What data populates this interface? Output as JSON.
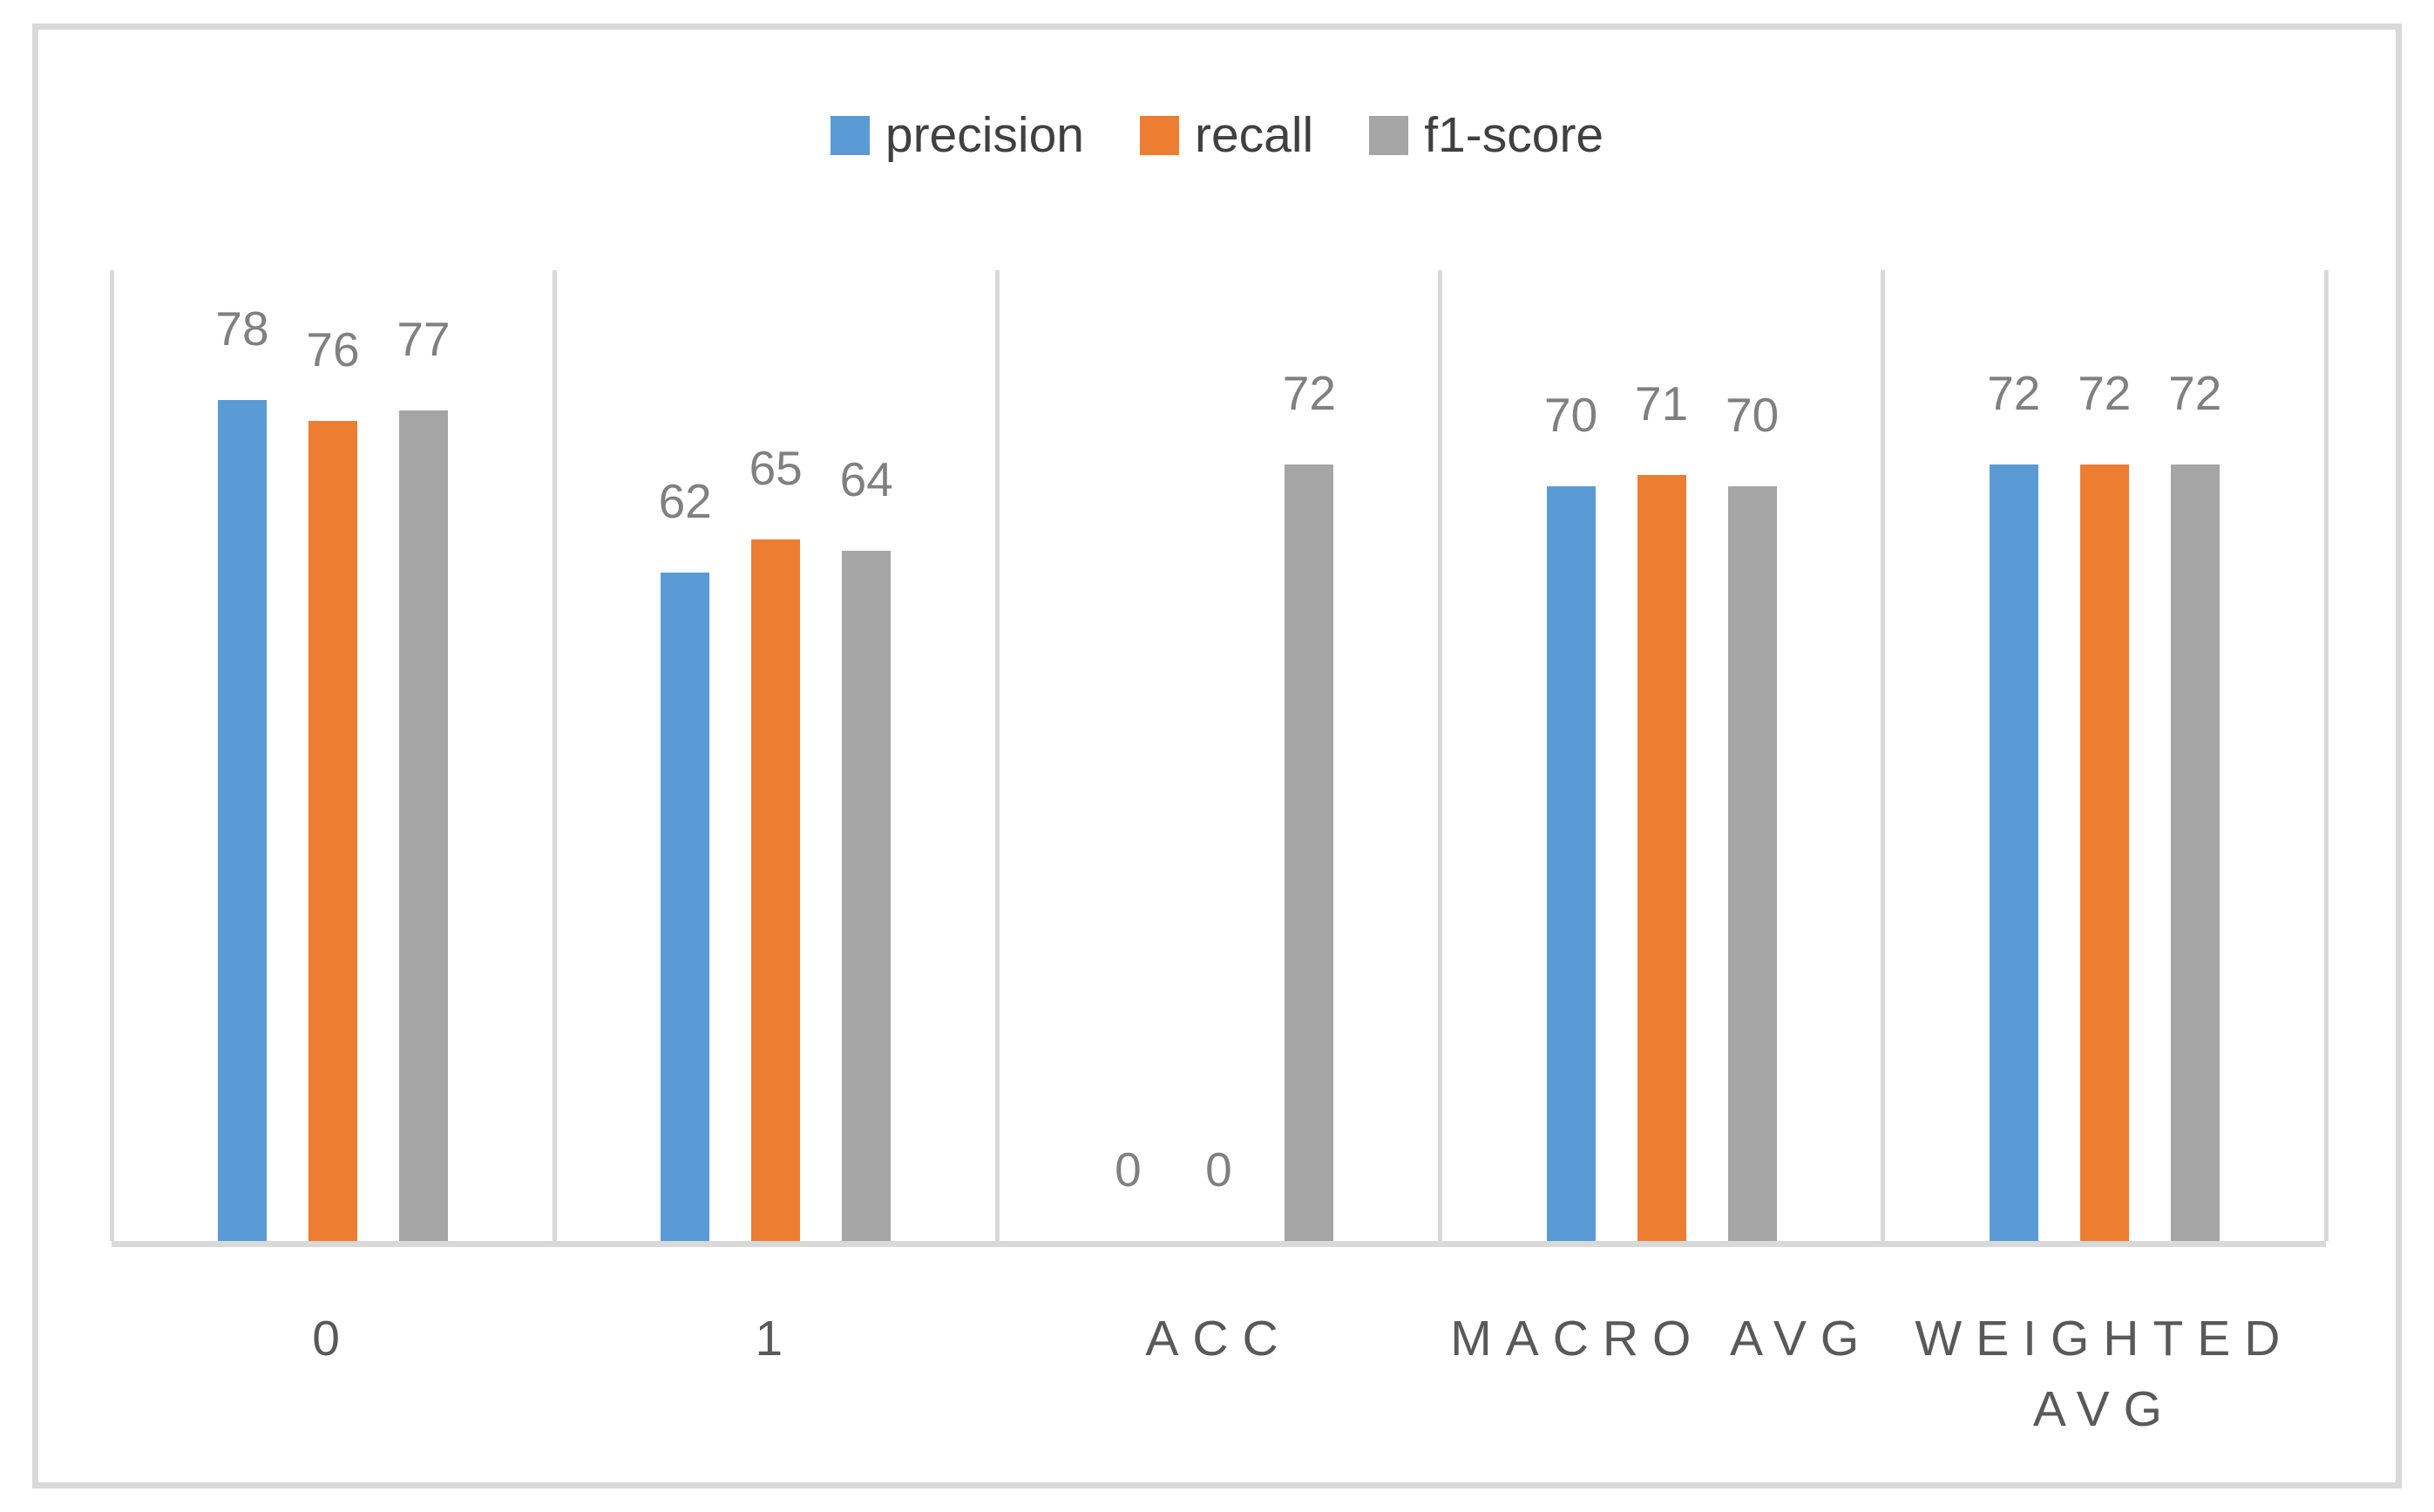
{
  "chart_data": {
    "type": "bar",
    "title": "",
    "categories": [
      "0",
      "1",
      "ACC",
      "MACRO AVG",
      "WEIGHTED AVG"
    ],
    "series": [
      {
        "name": "precision",
        "color": "#5B9BD5",
        "values": [
          78,
          62,
          0,
          70,
          72
        ]
      },
      {
        "name": "recall",
        "color": "#ED7D31",
        "values": [
          76,
          65,
          0,
          71,
          72
        ]
      },
      {
        "name": "f1-score",
        "color": "#A5A5A5",
        "values": [
          77,
          64,
          72,
          70,
          72
        ]
      }
    ],
    "ylim": [
      0,
      90
    ],
    "y_axis_visible": false,
    "grid": "vertical category separators only",
    "legend_position": "top center",
    "data_labels": "outside end, zero values labeled above baseline"
  },
  "style": {
    "background": "#FFFFFF",
    "frame_border": "#D9D9D9",
    "gridline": "#D9D9D9",
    "axis_line": "#D9D9D9",
    "data_label_color": "#808080",
    "axis_label_color": "#595959",
    "legend_text_color": "#404040"
  }
}
